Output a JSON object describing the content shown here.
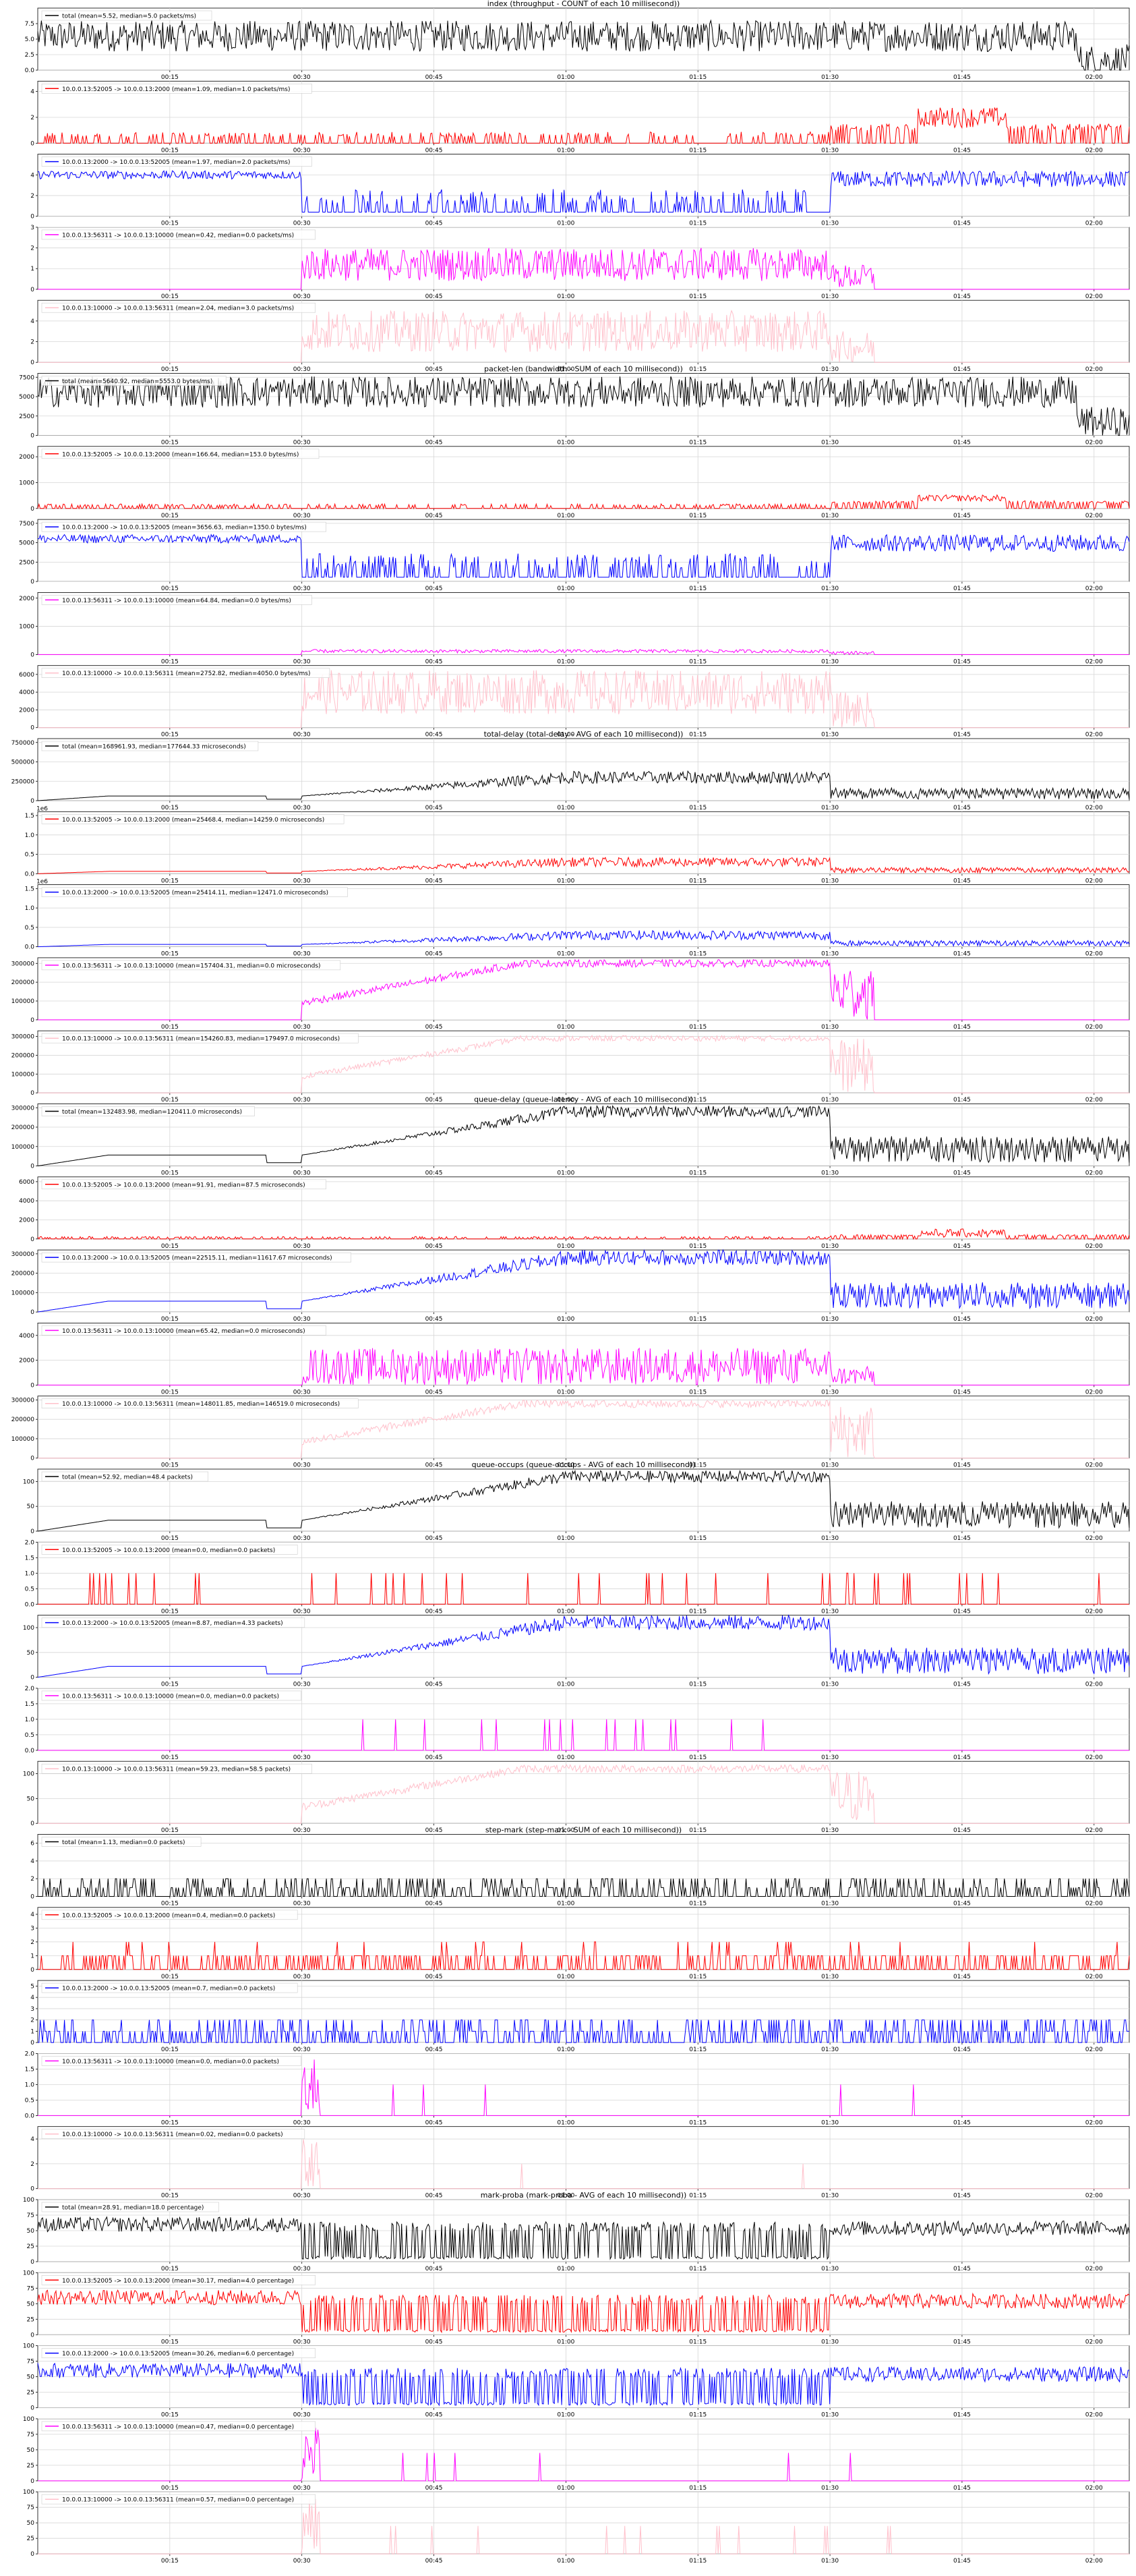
{
  "figure": {
    "titles": [
      "index (throughput - COUNT of each 10 millisecond))",
      "packet-len (bandwidth - SUM of each 10 millisecond))",
      "total-delay (total-delay - AVG of each 10 millisecond))",
      "queue-delay (queue-latency - AVG of each 10 millisecond))",
      "queue-occups (queue-occups - AVG of each 10 millisecond))",
      "step-mark (step-mark - SUM of each 10 millisecond))",
      "mark-proba (mark-proba - AVG of each 10 millisecond))"
    ],
    "x_ticks": [
      "00:15",
      "00:30",
      "00:45",
      "01:00",
      "01:15",
      "01:30",
      "01:45",
      "02:00"
    ],
    "series_colors": {
      "total": "#000000",
      "flow_52005": "#ff0000",
      "flow_2000": "#0000ff",
      "flow_56311": "#ff00ff",
      "flow_10000": "#ffc0cb"
    }
  },
  "chart_data": [
    {
      "type": "line",
      "group": 0,
      "series": [
        {
          "name": "total (mean=5.52, median=5.0 packets/ms)",
          "color": "#000000",
          "profile": "steady",
          "level": 5.5,
          "noise": 2.5
        }
      ],
      "yticks": [
        "0.0",
        "2.5",
        "5.0",
        "7.5"
      ],
      "ylim": [
        0,
        10
      ],
      "ylabel": ""
    },
    {
      "type": "line",
      "group": 0,
      "series": [
        {
          "name": "10.0.0.13:52005 -> 10.0.0.13:2000 (mean=1.09, median=1.0 packets/ms)",
          "color": "#ff0000",
          "profile": "bursty-mid",
          "level": 1.0,
          "noise": 1.6
        }
      ],
      "yticks": [
        "0",
        "2",
        "4"
      ],
      "ylim": [
        0,
        4.8
      ],
      "ylabel": ""
    },
    {
      "type": "line",
      "group": 0,
      "series": [
        {
          "name": "10.0.0.13:2000 -> 10.0.0.13:52005 (mean=1.97, median=2.0 packets/ms)",
          "color": "#0000ff",
          "profile": "high-low-high",
          "level": 4.0,
          "noise": 1.5
        }
      ],
      "yticks": [
        "0",
        "2",
        "4"
      ],
      "ylim": [
        0,
        6
      ],
      "ylabel": ""
    },
    {
      "type": "line",
      "group": 0,
      "series": [
        {
          "name": "10.0.0.13:56311 -> 10.0.0.13:10000 (mean=0.42, median=0.0 packets/ms)",
          "color": "#ff00ff",
          "profile": "mid-only",
          "level": 1.2,
          "noise": 0.8
        }
      ],
      "yticks": [
        "0",
        "1",
        "2",
        "3"
      ],
      "ylim": [
        0,
        3
      ],
      "ylabel": ""
    },
    {
      "type": "line",
      "group": 0,
      "series": [
        {
          "name": "10.0.0.13:10000 -> 10.0.0.13:56311 (mean=2.04, median=3.0 packets/ms)",
          "color": "#ffc0cb",
          "profile": "mid-only",
          "level": 3.0,
          "noise": 2.0
        }
      ],
      "yticks": [
        "0",
        "2",
        "4"
      ],
      "ylim": [
        0,
        6
      ],
      "ylabel": ""
    },
    {
      "type": "line",
      "group": 1,
      "series": [
        {
          "name": "total (mean=5640.92, median=5553.0 bytes/ms)",
          "color": "#000000",
          "profile": "steady",
          "level": 5600,
          "noise": 2000
        }
      ],
      "yticks": [
        "0",
        "2500",
        "5000",
        "7500"
      ],
      "ylim": [
        0,
        8000
      ],
      "ylabel": ""
    },
    {
      "type": "line",
      "group": 1,
      "series": [
        {
          "name": "10.0.0.13:52005 -> 10.0.0.13:2000 (mean=166.64, median=153.0 bytes/ms)",
          "color": "#ff0000",
          "profile": "bursty-mid",
          "level": 200,
          "noise": 250
        }
      ],
      "yticks": [
        "0",
        "1000",
        "2000"
      ],
      "ylim": [
        0,
        2400
      ],
      "ylabel": ""
    },
    {
      "type": "line",
      "group": 1,
      "series": [
        {
          "name": "10.0.0.13:2000 -> 10.0.0.13:52005 (mean=3656.63, median=1350.0 bytes/ms)",
          "color": "#0000ff",
          "profile": "high-low-high",
          "level": 5500,
          "noise": 2000
        }
      ],
      "yticks": [
        "0",
        "2500",
        "5000",
        "7500"
      ],
      "ylim": [
        0,
        8000
      ],
      "ylabel": ""
    },
    {
      "type": "line",
      "group": 1,
      "series": [
        {
          "name": "10.0.0.13:56311 -> 10.0.0.13:10000 (mean=64.84, median=0.0 bytes/ms)",
          "color": "#ff00ff",
          "profile": "mid-only",
          "level": 120,
          "noise": 60
        }
      ],
      "yticks": [
        "0",
        "1000",
        "2000"
      ],
      "ylim": [
        0,
        2200
      ],
      "ylabel": ""
    },
    {
      "type": "line",
      "group": 1,
      "series": [
        {
          "name": "10.0.0.13:10000 -> 10.0.0.13:56311 (mean=2752.82, median=4050.0 bytes/ms)",
          "color": "#ffc0cb",
          "profile": "mid-only",
          "level": 4000,
          "noise": 2500
        }
      ],
      "yticks": [
        "0",
        "2000",
        "4000",
        "6000"
      ],
      "ylim": [
        0,
        7000
      ],
      "ylabel": ""
    },
    {
      "type": "line",
      "group": 2,
      "series": [
        {
          "name": "total (mean=168961.93, median=177644.33 microseconds)",
          "color": "#000000",
          "profile": "ramp",
          "level": 300000,
          "noise": 80000
        }
      ],
      "yticks": [
        "0",
        "250000",
        "500000",
        "750000"
      ],
      "ylim": [
        0,
        800000
      ],
      "ylabel": ""
    },
    {
      "type": "line",
      "group": 2,
      "series": [
        {
          "name": "10.0.0.13:52005 -> 10.0.0.13:2000 (mean=25468.4, median=14259.0 microseconds)",
          "color": "#ff0000",
          "profile": "ramp",
          "level": 300000,
          "noise": 120000
        }
      ],
      "yticks": [
        "0.0",
        "0.5",
        "1.0",
        "1.5"
      ],
      "ylim": [
        0,
        1600000
      ],
      "exponent": "1e6",
      "ylabel": ""
    },
    {
      "type": "line",
      "group": 2,
      "series": [
        {
          "name": "10.0.0.13:2000 -> 10.0.0.13:52005 (mean=25414.11, median=12471.0 microseconds)",
          "color": "#0000ff",
          "profile": "ramp",
          "level": 300000,
          "noise": 120000
        }
      ],
      "yticks": [
        "0.0",
        "0.5",
        "1.0",
        "1.5"
      ],
      "ylim": [
        0,
        1600000
      ],
      "exponent": "1e6",
      "ylabel": ""
    },
    {
      "type": "line",
      "group": 2,
      "series": [
        {
          "name": "10.0.0.13:56311 -> 10.0.0.13:10000 (mean=157404.31, median=0.0 microseconds)",
          "color": "#ff00ff",
          "profile": "ramp-mid",
          "level": 300000,
          "noise": 20000
        }
      ],
      "yticks": [
        "0",
        "100000",
        "200000",
        "300000"
      ],
      "ylim": [
        0,
        330000
      ],
      "ylabel": ""
    },
    {
      "type": "line",
      "group": 2,
      "series": [
        {
          "name": "10.0.0.13:10000 -> 10.0.0.13:56311 (mean=154260.83, median=179497.0 microseconds)",
          "color": "#ffc0cb",
          "profile": "ramp-mid",
          "level": 290000,
          "noise": 15000
        }
      ],
      "yticks": [
        "0",
        "100000",
        "200000",
        "300000"
      ],
      "ylim": [
        0,
        330000
      ],
      "ylabel": ""
    },
    {
      "type": "line",
      "group": 3,
      "series": [
        {
          "name": "total (mean=132483.98, median=120411.0 microseconds)",
          "color": "#000000",
          "profile": "ramp",
          "level": 280000,
          "noise": 30000
        }
      ],
      "yticks": [
        "0",
        "100000",
        "200000",
        "300000"
      ],
      "ylim": [
        0,
        320000
      ],
      "ylabel": ""
    },
    {
      "type": "line",
      "group": 3,
      "series": [
        {
          "name": "10.0.0.13:52005 -> 10.0.0.13:2000 (mean=91.91, median=87.5 microseconds)",
          "color": "#ff0000",
          "profile": "bursty-mid",
          "level": 300,
          "noise": 900
        }
      ],
      "yticks": [
        "0",
        "2000",
        "4000",
        "6000"
      ],
      "ylim": [
        0,
        6500
      ],
      "ylabel": ""
    },
    {
      "type": "line",
      "group": 3,
      "series": [
        {
          "name": "10.0.0.13:2000 -> 10.0.0.13:52005 (mean=22515.11, median=11617.67 microseconds)",
          "color": "#0000ff",
          "profile": "ramp",
          "level": 280000,
          "noise": 40000
        }
      ],
      "yticks": [
        "0",
        "100000",
        "200000",
        "300000"
      ],
      "ylim": [
        0,
        320000
      ],
      "ylabel": ""
    },
    {
      "type": "line",
      "group": 3,
      "series": [
        {
          "name": "10.0.0.13:56311 -> 10.0.0.13:10000 (mean=65.42, median=0.0 microseconds)",
          "color": "#ff00ff",
          "profile": "mid-only",
          "level": 1500,
          "noise": 1500
        }
      ],
      "yticks": [
        "0",
        "2000",
        "4000"
      ],
      "ylim": [
        0,
        5000
      ],
      "ylabel": ""
    },
    {
      "type": "line",
      "group": 3,
      "series": [
        {
          "name": "10.0.0.13:10000 -> 10.0.0.13:56311 (mean=148011.85, median=146519.0 microseconds)",
          "color": "#ffc0cb",
          "profile": "ramp-mid",
          "level": 280000,
          "noise": 20000
        }
      ],
      "yticks": [
        "0",
        "100000",
        "200000",
        "300000"
      ],
      "ylim": [
        0,
        320000
      ],
      "ylabel": ""
    },
    {
      "type": "line",
      "group": 4,
      "series": [
        {
          "name": "total (mean=52.92, median=48.4 packets)",
          "color": "#000000",
          "profile": "ramp",
          "level": 110,
          "noise": 12
        }
      ],
      "yticks": [
        "0",
        "50",
        "100"
      ],
      "ylim": [
        0,
        125
      ],
      "ylabel": ""
    },
    {
      "type": "line",
      "group": 4,
      "series": [
        {
          "name": "10.0.0.13:52005 -> 10.0.0.13:2000 (mean=0.0, median=0.0 packets)",
          "color": "#ff0000",
          "profile": "sparse",
          "level": 1,
          "noise": 0
        }
      ],
      "yticks": [
        "0.0",
        "0.5",
        "1.0",
        "1.5",
        "2.0"
      ],
      "ylim": [
        0,
        2
      ],
      "ylabel": ""
    },
    {
      "type": "line",
      "group": 4,
      "series": [
        {
          "name": "10.0.0.13:2000 -> 10.0.0.13:52005 (mean=8.87, median=4.33 packets)",
          "color": "#0000ff",
          "profile": "ramp",
          "level": 110,
          "noise": 15
        }
      ],
      "yticks": [
        "0",
        "50",
        "100"
      ],
      "ylim": [
        0,
        125
      ],
      "ylabel": ""
    },
    {
      "type": "line",
      "group": 4,
      "series": [
        {
          "name": "10.0.0.13:56311 -> 10.0.0.13:10000 (mean=0.0, median=0.0 packets)",
          "color": "#ff00ff",
          "profile": "sparse-mid",
          "level": 1,
          "noise": 0
        }
      ],
      "yticks": [
        "0.0",
        "0.5",
        "1.0",
        "1.5",
        "2.0"
      ],
      "ylim": [
        0,
        2
      ],
      "ylabel": ""
    },
    {
      "type": "line",
      "group": 4,
      "series": [
        {
          "name": "10.0.0.13:10000 -> 10.0.0.13:56311 (mean=59.23, median=58.5 packets)",
          "color": "#ffc0cb",
          "profile": "ramp-mid",
          "level": 110,
          "noise": 8
        }
      ],
      "yticks": [
        "0",
        "50",
        "100"
      ],
      "ylim": [
        0,
        125
      ],
      "ylabel": ""
    },
    {
      "type": "line",
      "group": 5,
      "series": [
        {
          "name": "total (mean=1.13, median=0.0 packets)",
          "color": "#000000",
          "profile": "marks",
          "level": 2,
          "noise": 4
        }
      ],
      "yticks": [
        "0",
        "2",
        "4",
        "6"
      ],
      "ylim": [
        0,
        7
      ],
      "ylabel": ""
    },
    {
      "type": "line",
      "group": 5,
      "series": [
        {
          "name": "10.0.0.13:52005 -> 10.0.0.13:2000 (mean=0.4, median=0.0 packets)",
          "color": "#ff0000",
          "profile": "marks",
          "level": 1.5,
          "noise": 3
        }
      ],
      "yticks": [
        "0",
        "1",
        "2",
        "3",
        "4"
      ],
      "ylim": [
        0,
        4.5
      ],
      "ylabel": ""
    },
    {
      "type": "line",
      "group": 5,
      "series": [
        {
          "name": "10.0.0.13:2000 -> 10.0.0.13:52005 (mean=0.7, median=0.0 packets)",
          "color": "#0000ff",
          "profile": "marks",
          "level": 2,
          "noise": 3
        }
      ],
      "yticks": [
        "0",
        "1",
        "2",
        "3",
        "4",
        "5"
      ],
      "ylim": [
        0,
        5.5
      ],
      "ylabel": ""
    },
    {
      "type": "line",
      "group": 5,
      "series": [
        {
          "name": "10.0.0.13:56311 -> 10.0.0.13:10000 (mean=0.0, median=0.0 packets)",
          "color": "#ff00ff",
          "profile": "spike-30",
          "level": 2,
          "noise": 0
        }
      ],
      "yticks": [
        "0.0",
        "0.5",
        "1.0",
        "1.5",
        "2.0"
      ],
      "ylim": [
        0,
        2
      ],
      "ylabel": ""
    },
    {
      "type": "line",
      "group": 5,
      "series": [
        {
          "name": "10.0.0.13:10000 -> 10.0.0.13:56311 (mean=0.02, median=0.0 packets)",
          "color": "#ffc0cb",
          "profile": "spike-30",
          "level": 4,
          "noise": 0
        }
      ],
      "yticks": [
        "0",
        "2",
        "4"
      ],
      "ylim": [
        0,
        5
      ],
      "ylabel": ""
    },
    {
      "type": "line",
      "group": 6,
      "series": [
        {
          "name": "total (mean=28.91, median=18.0 percentage)",
          "color": "#000000",
          "profile": "proba",
          "level": 60,
          "noise": 25
        }
      ],
      "yticks": [
        "0",
        "25",
        "50",
        "75",
        "100"
      ],
      "ylim": [
        0,
        100
      ],
      "ylabel": ""
    },
    {
      "type": "line",
      "group": 6,
      "series": [
        {
          "name": "10.0.0.13:52005 -> 10.0.0.13:2000 (mean=30.17, median=4.0 percentage)",
          "color": "#ff0000",
          "profile": "proba",
          "level": 60,
          "noise": 30
        }
      ],
      "yticks": [
        "0",
        "25",
        "50",
        "75",
        "100"
      ],
      "ylim": [
        0,
        100
      ],
      "ylabel": ""
    },
    {
      "type": "line",
      "group": 6,
      "series": [
        {
          "name": "10.0.0.13:2000 -> 10.0.0.13:52005 (mean=30.26, median=6.0 percentage)",
          "color": "#0000ff",
          "profile": "proba",
          "level": 60,
          "noise": 30
        }
      ],
      "yticks": [
        "0",
        "25",
        "50",
        "75",
        "100"
      ],
      "ylim": [
        0,
        100
      ],
      "ylabel": ""
    },
    {
      "type": "line",
      "group": 6,
      "series": [
        {
          "name": "10.0.0.13:56311 -> 10.0.0.13:10000 (mean=0.47, median=0.0 percentage)",
          "color": "#ff00ff",
          "profile": "spike-30",
          "level": 90,
          "noise": 0
        }
      ],
      "yticks": [
        "0",
        "25",
        "50",
        "75",
        "100"
      ],
      "ylim": [
        0,
        100
      ],
      "ylabel": ""
    },
    {
      "type": "line",
      "group": 6,
      "series": [
        {
          "name": "10.0.0.13:10000 -> 10.0.0.13:56311 (mean=0.57, median=0.0 percentage)",
          "color": "#ffc0cb",
          "profile": "spike-30",
          "level": 90,
          "noise": 0
        }
      ],
      "yticks": [
        "0",
        "25",
        "50",
        "75",
        "100"
      ],
      "ylim": [
        0,
        100
      ],
      "ylabel": ""
    }
  ]
}
